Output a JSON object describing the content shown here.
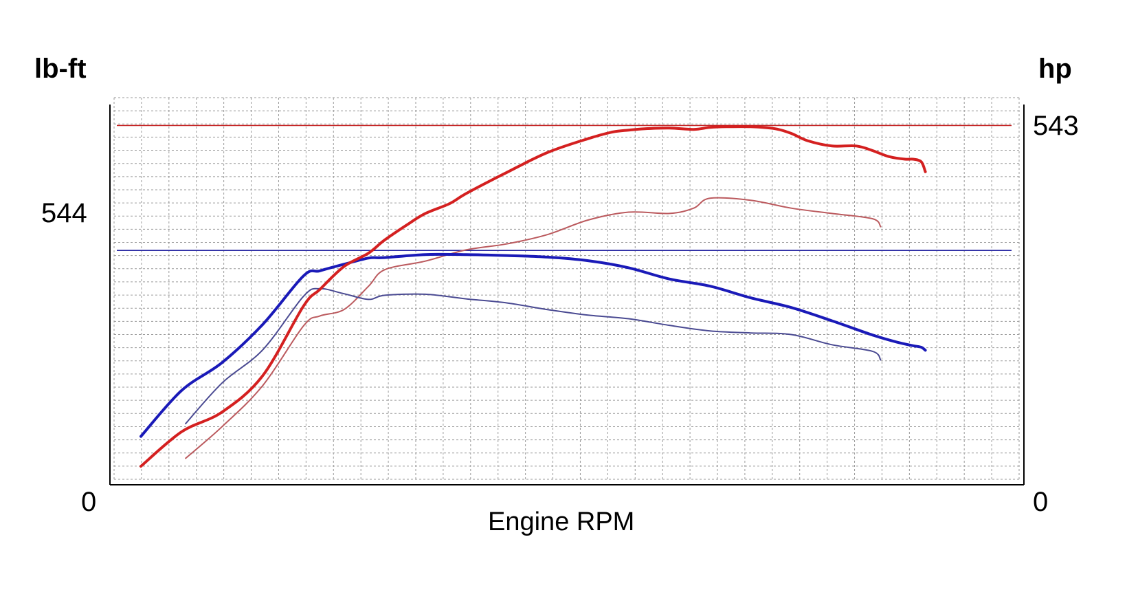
{
  "chart_data": {
    "type": "line",
    "title": "",
    "xlabel": "Engine RPM",
    "y_left": {
      "unit_label": "lb-ft",
      "tick_labels": [
        "0",
        "544"
      ],
      "range": [
        0,
        760
      ]
    },
    "y_right": {
      "unit_label": "hp",
      "tick_labels": [
        "0",
        "543"
      ],
      "range": [
        0,
        585
      ]
    },
    "x_range": [
      0,
      100
    ],
    "grid": true,
    "legend": "none",
    "colors": {
      "power": "#d42020",
      "power_baseline": "#bb5a5e",
      "torque": "#1a1ab8",
      "torque_baseline": "#4a4a92",
      "power_peak_line": "#c62828",
      "torque_peak_line": "#2323a0",
      "grid": "#9a9a9a"
    },
    "reference_lines": [
      {
        "axis": "right",
        "value": 543,
        "color": "#c62828"
      },
      {
        "axis": "left",
        "value": 460,
        "color": "#2323a0"
      }
    ],
    "series": [
      {
        "axis": "right",
        "role": "power",
        "color": "#d42020",
        "width": 4,
        "x": [
          0,
          5,
          10,
          15,
          20,
          22,
          25,
          28,
          30,
          33,
          35,
          38,
          40,
          45,
          50,
          55,
          58,
          60,
          62,
          65,
          68,
          70,
          72,
          75,
          78,
          80,
          82,
          85,
          88,
          90,
          92,
          94,
          95,
          96,
          96.5
        ],
        "y": [
          28,
          80,
          110,
          165,
          270,
          295,
          330,
          350,
          370,
          395,
          410,
          425,
          440,
          472,
          502,
          523,
          533,
          536,
          538,
          539,
          537,
          540,
          541,
          541,
          538,
          531,
          520,
          512,
          512,
          505,
          496,
          492,
          492,
          488,
          473
        ]
      },
      {
        "axis": "right",
        "role": "power_baseline",
        "color": "#bb5a5e",
        "width": 2,
        "x": [
          5.5,
          10,
          15,
          20,
          22,
          25,
          28,
          30,
          35,
          40,
          45,
          50,
          55,
          60,
          65,
          68,
          70,
          75,
          80,
          85,
          90,
          91
        ],
        "y": [
          40,
          88,
          150,
          240,
          255,
          265,
          300,
          325,
          338,
          355,
          364,
          378,
          400,
          412,
          410,
          418,
          433,
          430,
          418,
          410,
          402,
          390
        ]
      },
      {
        "axis": "left",
        "role": "torque",
        "color": "#1a1ab8",
        "width": 4,
        "x": [
          0,
          5,
          10,
          15,
          20,
          22,
          25,
          28,
          30,
          35,
          40,
          45,
          50,
          55,
          60,
          65,
          70,
          75,
          80,
          85,
          90,
          93,
          95,
          96,
          96.5
        ],
        "y": [
          95,
          185,
          240,
          315,
          410,
          420,
          433,
          445,
          446,
          452,
          452,
          450,
          447,
          440,
          426,
          404,
          390,
          367,
          348,
          322,
          294,
          280,
          273,
          270,
          264
        ]
      },
      {
        "axis": "left",
        "role": "torque_baseline",
        "color": "#4a4a92",
        "width": 2,
        "x": [
          5.5,
          10,
          15,
          20,
          22,
          25,
          28,
          30,
          35,
          40,
          45,
          50,
          55,
          60,
          65,
          70,
          75,
          80,
          85,
          90,
          91
        ],
        "y": [
          120,
          200,
          265,
          370,
          385,
          375,
          364,
          372,
          374,
          365,
          357,
          344,
          333,
          326,
          313,
          302,
          298,
          295,
          275,
          262,
          245
        ]
      }
    ]
  }
}
